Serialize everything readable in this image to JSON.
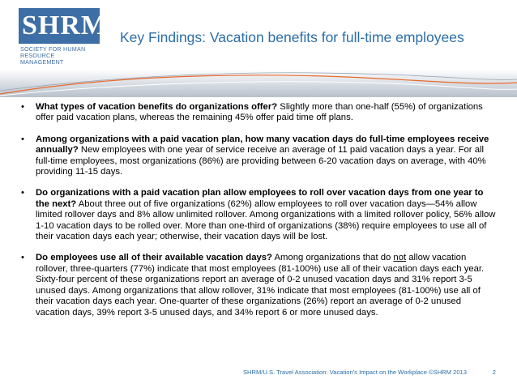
{
  "logo": {
    "mark": "SHRM",
    "registered": "®",
    "line1": "Society for Human",
    "line2": "Resource Management"
  },
  "title": "Key Findings: Vacation benefits for full-time employees",
  "bullets": [
    {
      "question": "What types of vacation benefits do organizations offer?",
      "body": " Slightly more than one-half (55%) of organizations offer paid vacation plans, whereas the remaining 45% offer paid time off plans."
    },
    {
      "question": "Among organizations with a paid vacation plan, how many vacation days do full-time employees receive annually?",
      "body": " New employees with one year of service receive an average of 11 paid vacation days a year. For all full-time employees, most organizations (86%) are providing between 6-20 vacation days on average, with 40% providing 11-15 days."
    },
    {
      "question": "Do organizations with a paid vacation plan allow employees to roll over vacation days from one year to the next?",
      "body": " About three out of five organizations (62%) allow employees to roll over vacation days—54% allow limited rollover days and 8% allow unlimited rollover. Among organizations with a limited rollover policy, 56% allow 1-10 vacation days to be rolled over. More than one-third of organizations (38%) require employees to use all of their vacation days each year; otherwise, their vacation days will be lost."
    },
    {
      "question": "Do employees use all of their available vacation days?",
      "body_pre": " Among organizations that do ",
      "body_emph": "not",
      "body_post": " allow vacation rollover, three-quarters (77%) indicate that most employees (81-100%) use all of their vacation days each year. Sixty-four percent of these organizations report an average of 0-2 unused vacation days and 31% report 3-5 unused days. Among organizations that allow rollover, 31% indicate that most employees (81-100%) use all of their vacation days each year. One-quarter of these organizations (26%) report an average of 0-2 unused vacation days, 39% report 3-5 unused days, and 34% report 6 or more unused days."
    }
  ],
  "bullet_symbol": "•",
  "footer": {
    "citation": "SHRM/U.S. Travel Association: Vacation's Impact on the Workplace ©SHRM 2013",
    "page": "2"
  },
  "colors": {
    "brand_blue": "#3d6fa6",
    "title_blue": "#2b6ea8"
  }
}
